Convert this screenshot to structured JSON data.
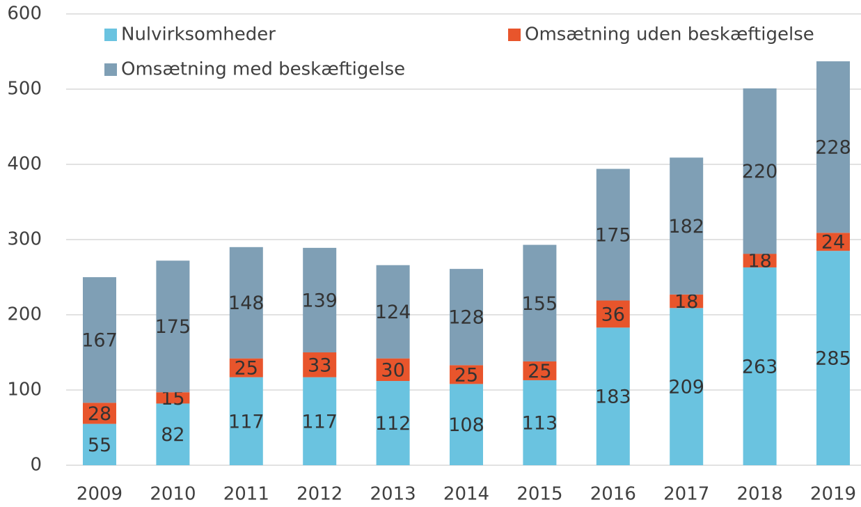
{
  "chart_data": {
    "type": "stacked_bar",
    "categories": [
      "2009",
      "2010",
      "2011",
      "2012",
      "2013",
      "2014",
      "2015",
      "2016",
      "2017",
      "2018",
      "2019"
    ],
    "series": [
      {
        "name": "Nulvirksomheder",
        "color": "#6ac3e0",
        "values": [
          55,
          82,
          117,
          117,
          112,
          108,
          113,
          183,
          209,
          263,
          285
        ]
      },
      {
        "name": "Omsætning uden beskæftigelse",
        "color": "#e8552c",
        "values": [
          28,
          15,
          25,
          33,
          30,
          25,
          25,
          36,
          18,
          18,
          24
        ]
      },
      {
        "name": "Omsætning med beskæftigelse",
        "color": "#7f9fb5",
        "values": [
          167,
          175,
          148,
          139,
          124,
          128,
          155,
          175,
          182,
          220,
          228
        ]
      }
    ],
    "ylim": [
      0,
      600
    ],
    "yticks": [
      0,
      100,
      200,
      300,
      400,
      500,
      600
    ],
    "grid": true
  }
}
